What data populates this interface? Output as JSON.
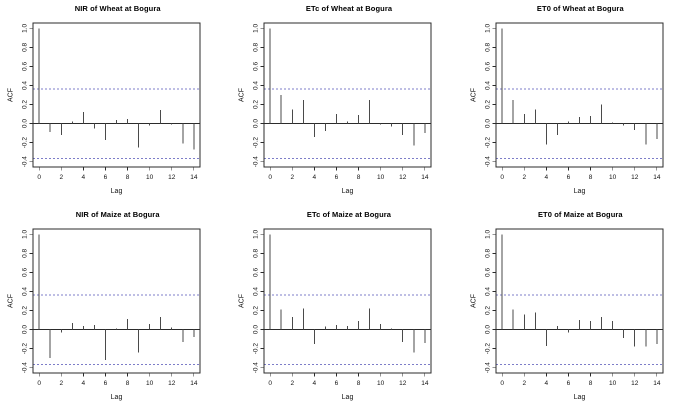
{
  "page": {
    "background": "#ffffff"
  },
  "colors": {
    "bar": "#4a4a4a",
    "axis": "#2b2b2b",
    "zero_line": "#2b2b2b",
    "conf_line": "#7d7dc8",
    "text": "#000000"
  },
  "chart_data": [
    {
      "type": "bar",
      "title": "NIR of Wheat at Bogura",
      "xlabel": "Lag",
      "ylabel": "ACF",
      "x": [
        0,
        1,
        2,
        3,
        4,
        5,
        6,
        7,
        8,
        9,
        10,
        11,
        12,
        13,
        14
      ],
      "values": [
        1.0,
        -0.09,
        -0.12,
        0.02,
        0.12,
        -0.05,
        -0.17,
        0.04,
        0.05,
        -0.25,
        -0.02,
        0.14,
        -0.01,
        -0.21,
        -0.27
      ],
      "ylim": [
        -0.4,
        1.0
      ],
      "yticks": [
        -0.4,
        -0.2,
        0.0,
        0.2,
        0.4,
        0.6,
        0.8,
        1.0
      ],
      "xticks": [
        0,
        2,
        4,
        6,
        8,
        10,
        12,
        14
      ],
      "conf_level": 0.365,
      "grid": false,
      "legend": null
    },
    {
      "type": "bar",
      "title": "ETc of Wheat at Bogura",
      "xlabel": "Lag",
      "ylabel": "ACF",
      "x": [
        0,
        1,
        2,
        3,
        4,
        5,
        6,
        7,
        8,
        9,
        10,
        11,
        12,
        13,
        14
      ],
      "values": [
        1.0,
        0.3,
        0.15,
        0.25,
        -0.14,
        -0.08,
        0.1,
        0.02,
        0.09,
        0.25,
        -0.01,
        -0.03,
        -0.12,
        -0.23,
        -0.1
      ],
      "ylim": [
        -0.4,
        1.0
      ],
      "yticks": [
        -0.4,
        -0.2,
        0.0,
        0.2,
        0.4,
        0.6,
        0.8,
        1.0
      ],
      "xticks": [
        0,
        2,
        4,
        6,
        8,
        10,
        12,
        14
      ],
      "conf_level": 0.365,
      "grid": false,
      "legend": null
    },
    {
      "type": "bar",
      "title": "ET0 of Wheat at Bogura",
      "xlabel": "Lag",
      "ylabel": "ACF",
      "x": [
        0,
        1,
        2,
        3,
        4,
        5,
        6,
        7,
        8,
        9,
        10,
        11,
        12,
        13,
        14
      ],
      "values": [
        1.0,
        0.25,
        0.1,
        0.15,
        -0.22,
        -0.12,
        0.02,
        0.07,
        0.08,
        0.2,
        0.01,
        -0.02,
        -0.07,
        -0.22,
        -0.16
      ],
      "ylim": [
        -0.4,
        1.0
      ],
      "yticks": [
        -0.4,
        -0.2,
        0.0,
        0.2,
        0.4,
        0.6,
        0.8,
        1.0
      ],
      "xticks": [
        0,
        2,
        4,
        6,
        8,
        10,
        12,
        14
      ],
      "conf_level": 0.365,
      "grid": false,
      "legend": null
    },
    {
      "type": "bar",
      "title": "NIR of Maize at Bogura",
      "xlabel": "Lag",
      "ylabel": "ACF",
      "x": [
        0,
        1,
        2,
        3,
        4,
        5,
        6,
        7,
        8,
        9,
        10,
        11,
        12,
        13,
        14
      ],
      "values": [
        1.0,
        -0.3,
        -0.03,
        0.07,
        0.04,
        0.05,
        -0.32,
        0.01,
        0.11,
        -0.24,
        0.06,
        0.13,
        0.02,
        -0.13,
        -0.08
      ],
      "ylim": [
        -0.4,
        1.0
      ],
      "yticks": [
        -0.4,
        -0.2,
        0.0,
        0.2,
        0.4,
        0.6,
        0.8,
        1.0
      ],
      "xticks": [
        0,
        2,
        4,
        6,
        8,
        10,
        12,
        14
      ],
      "conf_level": 0.365,
      "grid": false,
      "legend": null
    },
    {
      "type": "bar",
      "title": "ETc of Maize at Bogura",
      "xlabel": "Lag",
      "ylabel": "ACF",
      "x": [
        0,
        1,
        2,
        3,
        4,
        5,
        6,
        7,
        8,
        9,
        10,
        11,
        12,
        13,
        14
      ],
      "values": [
        1.0,
        0.21,
        0.13,
        0.22,
        -0.15,
        0.03,
        0.05,
        0.04,
        0.09,
        0.22,
        0.06,
        0.01,
        -0.13,
        -0.24,
        -0.14
      ],
      "ylim": [
        -0.4,
        1.0
      ],
      "yticks": [
        -0.4,
        -0.2,
        0.0,
        0.2,
        0.4,
        0.6,
        0.8,
        1.0
      ],
      "xticks": [
        0,
        2,
        4,
        6,
        8,
        10,
        12,
        14
      ],
      "conf_level": 0.365,
      "grid": false,
      "legend": null
    },
    {
      "type": "bar",
      "title": "ET0 of Maize at Bogura",
      "xlabel": "Lag",
      "ylabel": "ACF",
      "x": [
        0,
        1,
        2,
        3,
        4,
        5,
        6,
        7,
        8,
        9,
        10,
        11,
        12,
        13,
        14
      ],
      "values": [
        1.0,
        0.21,
        0.16,
        0.18,
        -0.17,
        0.04,
        -0.03,
        0.1,
        0.09,
        0.13,
        0.09,
        -0.09,
        -0.18,
        -0.18,
        -0.15
      ],
      "ylim": [
        -0.4,
        1.0
      ],
      "yticks": [
        -0.4,
        -0.2,
        0.0,
        0.2,
        0.4,
        0.6,
        0.8,
        1.0
      ],
      "xticks": [
        0,
        2,
        4,
        6,
        8,
        10,
        12,
        14
      ],
      "conf_level": 0.365,
      "grid": false,
      "legend": null
    }
  ]
}
